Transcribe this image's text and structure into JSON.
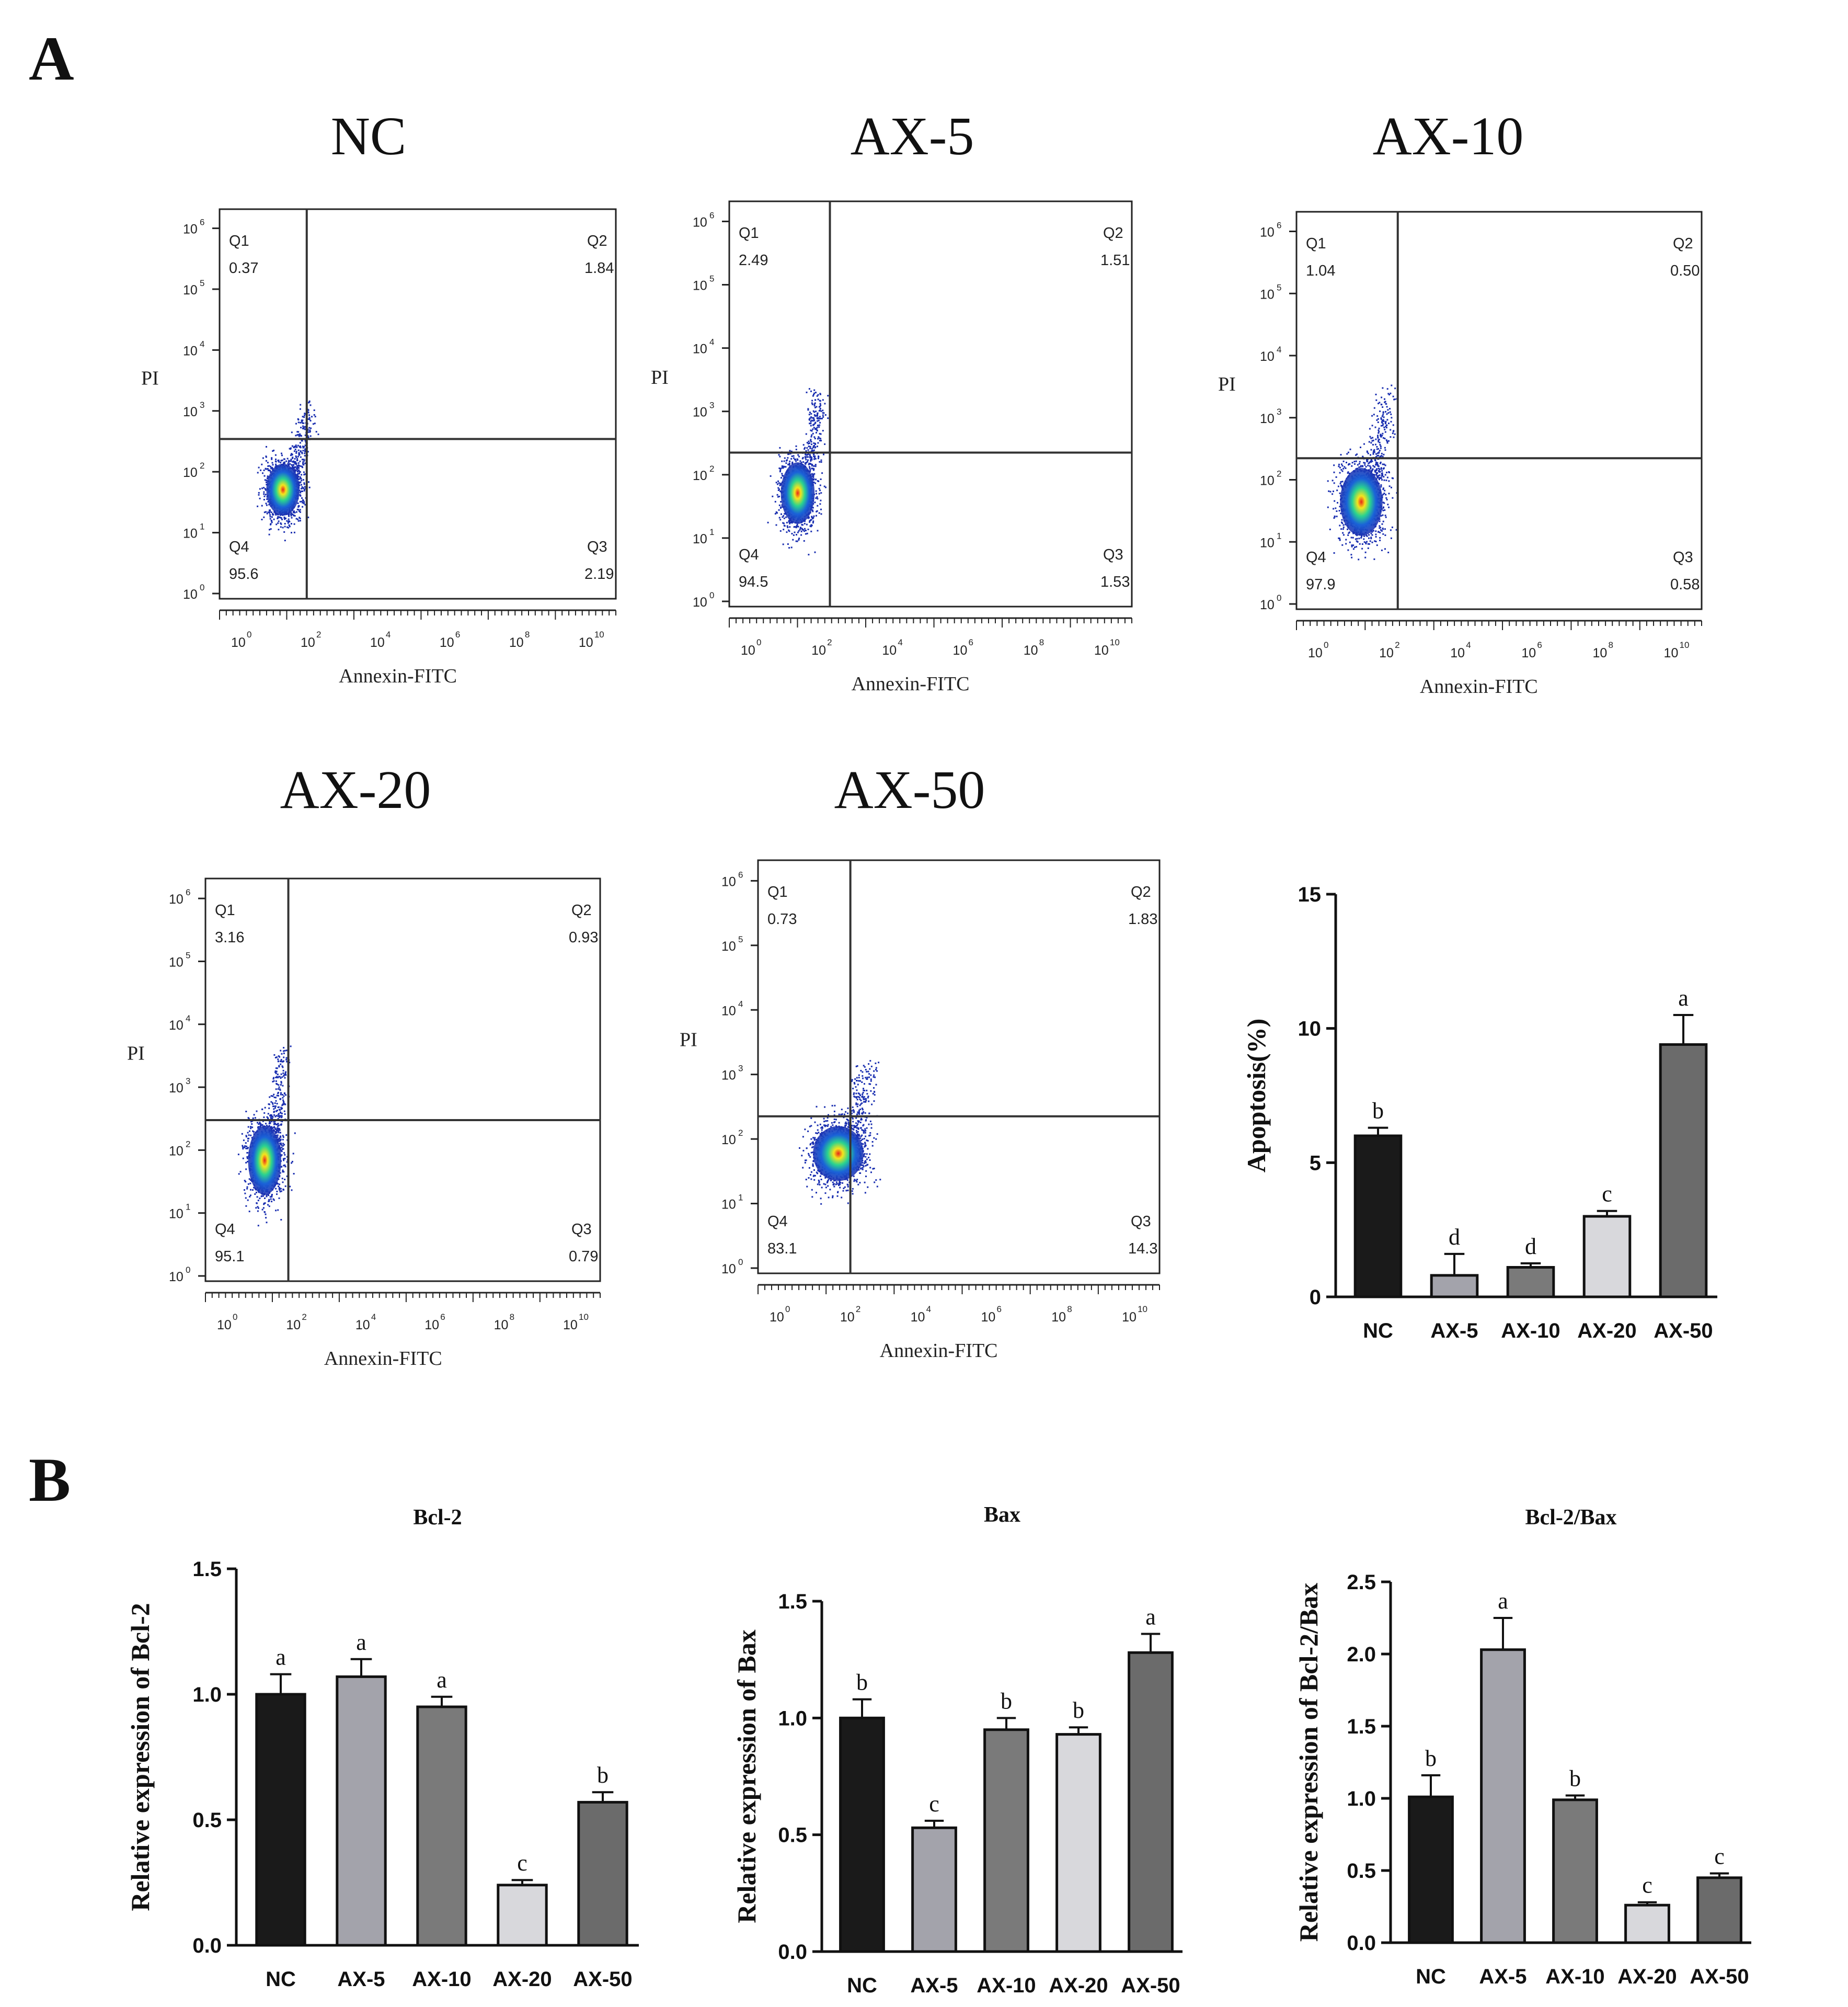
{
  "panels": {
    "a_label": "A",
    "b_label": "B"
  },
  "colors": {
    "axis": "#222222",
    "bar_stroke": "#111111"
  },
  "bar_colors": [
    "#1a1a1a",
    "#a3a3ab",
    "#7a7a7a",
    "#d8d8dc",
    "#6b6b6b"
  ],
  "flow_plots": [
    {
      "title": "NC",
      "x_label": "Annexin-FITC",
      "y_label": "PI",
      "q1": "Q1",
      "q1_val": "0.37",
      "q2": "Q2",
      "q2_val": "1.84",
      "q3": "Q3",
      "q3_val": "2.19",
      "q4": "Q4",
      "q4_val": "95.6"
    },
    {
      "title": "AX-5",
      "x_label": "Annexin-FITC",
      "y_label": "PI",
      "q1": "Q1",
      "q1_val": "2.49",
      "q2": "Q2",
      "q2_val": "1.51",
      "q3": "Q3",
      "q3_val": "1.53",
      "q4": "Q4",
      "q4_val": "94.5"
    },
    {
      "title": "AX-10",
      "x_label": "Annexin-FITC",
      "y_label": "PI",
      "q1": "Q1",
      "q1_val": "1.04",
      "q2": "Q2",
      "q2_val": "0.50",
      "q3": "Q3",
      "q3_val": "0.58",
      "q4": "Q4",
      "q4_val": "97.9"
    },
    {
      "title": "AX-20",
      "x_label": "Annexin-FITC",
      "y_label": "PI",
      "q1": "Q1",
      "q1_val": "3.16",
      "q2": "Q2",
      "q2_val": "0.93",
      "q3": "Q3",
      "q3_val": "0.79",
      "q4": "Q4",
      "q4_val": "95.1"
    },
    {
      "title": "AX-50",
      "x_label": "Annexin-FITC",
      "y_label": "PI",
      "q1": "Q1",
      "q1_val": "0.73",
      "q2": "Q2",
      "q2_val": "1.83",
      "q3": "Q3",
      "q3_val": "14.3",
      "q4": "Q4",
      "q4_val": "83.1"
    }
  ],
  "flow_axis": {
    "y_ticks": [
      {
        "base": "10",
        "exp": "0"
      },
      {
        "base": "10",
        "exp": "1"
      },
      {
        "base": "10",
        "exp": "2"
      },
      {
        "base": "10",
        "exp": "3"
      },
      {
        "base": "10",
        "exp": "4"
      },
      {
        "base": "10",
        "exp": "5"
      },
      {
        "base": "10",
        "exp": "6"
      }
    ],
    "x_ticks": [
      {
        "base": "10",
        "exp": "0"
      },
      {
        "base": "10",
        "exp": "2"
      },
      {
        "base": "10",
        "exp": "4"
      },
      {
        "base": "10",
        "exp": "6"
      },
      {
        "base": "10",
        "exp": "8"
      },
      {
        "base": "10",
        "exp": "10"
      }
    ]
  },
  "chart_data": [
    {
      "type": "bar",
      "title": "",
      "categories": [
        "NC",
        "AX-5",
        "AX-10",
        "AX-20",
        "AX-50"
      ],
      "values": [
        6.0,
        0.8,
        1.1,
        3.0,
        9.4
      ],
      "errors": [
        0.3,
        0.8,
        0.15,
        0.2,
        1.1
      ],
      "significance": [
        "b",
        "d",
        "d",
        "c",
        "a"
      ],
      "ylabel": "Apoptosis(%)",
      "xlabel": "",
      "ylim": [
        0,
        15
      ],
      "yticks": [
        "0",
        "5",
        "10",
        "15"
      ]
    },
    {
      "type": "bar",
      "title": "Bcl-2",
      "categories": [
        "NC",
        "AX-5",
        "AX-10",
        "AX-20",
        "AX-50"
      ],
      "values": [
        1.0,
        1.07,
        0.95,
        0.24,
        0.57
      ],
      "errors": [
        0.08,
        0.07,
        0.04,
        0.02,
        0.04
      ],
      "significance": [
        "a",
        "a",
        "a",
        "c",
        "b"
      ],
      "ylabel": "Relative expression of Bcl-2",
      "xlabel": "",
      "ylim": [
        0,
        1.5
      ],
      "yticks": [
        "0.0",
        "0.5",
        "1.0",
        "1.5"
      ]
    },
    {
      "type": "bar",
      "title": "Bax",
      "categories": [
        "NC",
        "AX-5",
        "AX-10",
        "AX-20",
        "AX-50"
      ],
      "values": [
        1.0,
        0.53,
        0.95,
        0.93,
        1.28
      ],
      "errors": [
        0.08,
        0.03,
        0.05,
        0.03,
        0.08
      ],
      "significance": [
        "b",
        "c",
        "b",
        "b",
        "a"
      ],
      "ylabel": "Relative expression of Bax",
      "xlabel": "",
      "ylim": [
        0,
        1.5
      ],
      "yticks": [
        "0.0",
        "0.5",
        "1.0",
        "1.5"
      ]
    },
    {
      "type": "bar",
      "title": "Bcl-2/Bax",
      "categories": [
        "NC",
        "AX-5",
        "AX-10",
        "AX-20",
        "AX-50"
      ],
      "values": [
        1.01,
        2.03,
        0.99,
        0.26,
        0.45
      ],
      "errors": [
        0.15,
        0.22,
        0.03,
        0.02,
        0.03
      ],
      "significance": [
        "b",
        "a",
        "b",
        "c",
        "c"
      ],
      "ylabel": "Relative expression of Bcl-2/Bax",
      "xlabel": "",
      "ylim": [
        0,
        2.5
      ],
      "yticks": [
        "0.0",
        "0.5",
        "1.0",
        "1.5",
        "2.0",
        "2.5"
      ]
    }
  ]
}
